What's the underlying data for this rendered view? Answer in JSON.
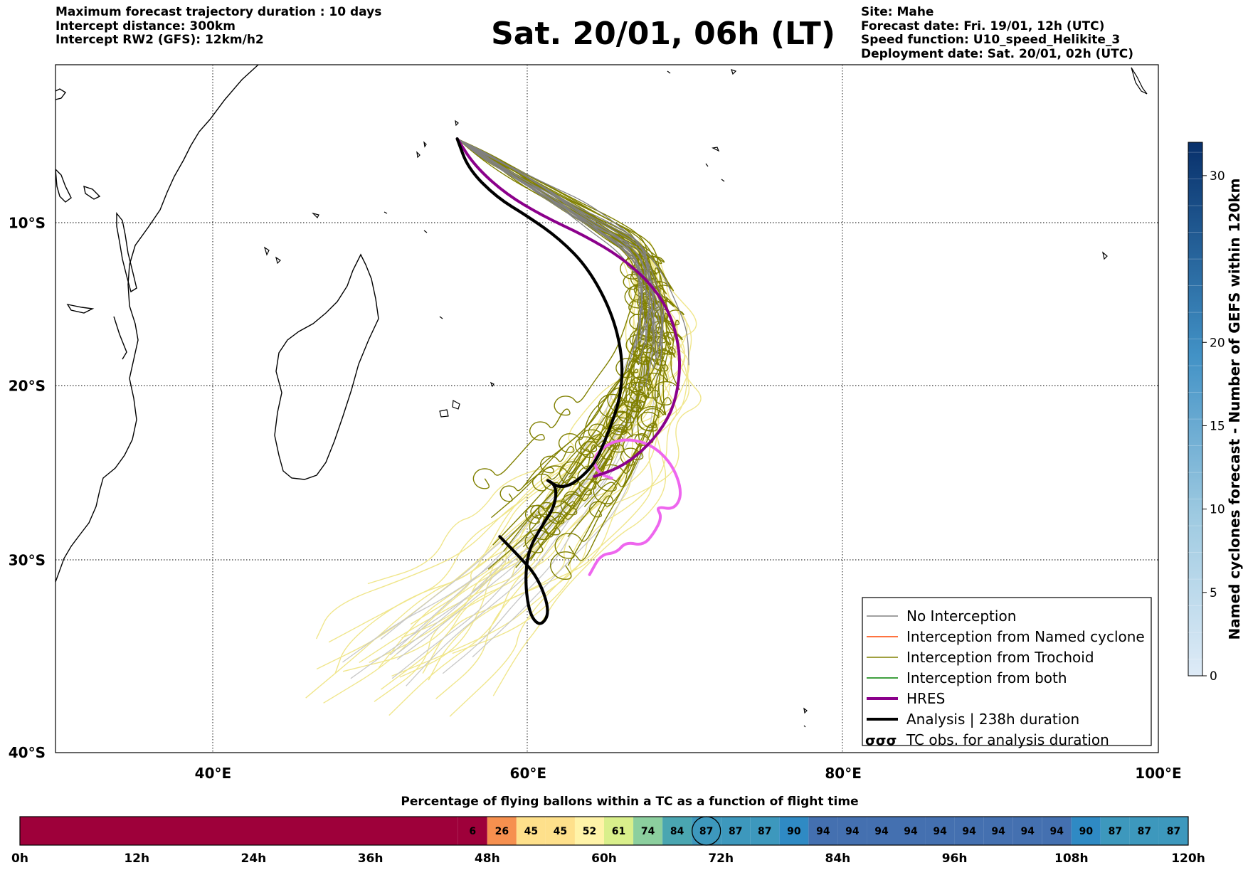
{
  "header": {
    "left": [
      "Maximum forecast trajectory duration : 10 days",
      "Intercept distance: 300km",
      "Intercept RW2 (GFS):  12km/h2"
    ],
    "title": "Sat. 20/01, 06h (LT)",
    "right": [
      "Site: Mahe",
      "Forecast date: Fri. 19/01, 12h (UTC)",
      "Speed function: U10_speed_Helikite_3",
      "Deployment date: Sat. 20/01, 02h (UTC)"
    ]
  },
  "chart_data": [
    {
      "type": "map-trajectories",
      "xlim": [
        30,
        100
      ],
      "ylim": [
        -40,
        0
      ],
      "x_ticks": [
        40,
        60,
        80,
        100
      ],
      "x_tick_labels": [
        "40°E",
        "60°E",
        "80°E",
        "100°E"
      ],
      "y_ticks": [
        -10,
        -20,
        -30,
        -40
      ],
      "y_tick_labels": [
        "10°S",
        "20°S",
        "30°S",
        "40°S"
      ],
      "grid": true,
      "legend_position": "bottom-right",
      "legend": [
        {
          "label": "No Interception",
          "color": "#808080",
          "style": "thin"
        },
        {
          "label": "Interception from Named cyclone",
          "color": "#ff4500",
          "style": "thin"
        },
        {
          "label": "Interception from Trochoid",
          "color": "#808000",
          "style": "thin"
        },
        {
          "label": "Interception from both",
          "color": "#008000",
          "style": "thin"
        },
        {
          "label": "HRES",
          "color": "#8b008b",
          "style": "thick"
        },
        {
          "label": "Analysis | 238h duration",
          "color": "#000000",
          "style": "thick"
        },
        {
          "label": "TC obs. for analysis duration",
          "color": "#000000",
          "style": "symbol",
          "symbol": "σσσ"
        }
      ],
      "launch_site": {
        "lon": 55.5,
        "lat": -4.7
      },
      "analysis_track": [
        [
          55.5,
          -4.7
        ],
        [
          56.2,
          -6.6
        ],
        [
          58.0,
          -8.4
        ],
        [
          60.0,
          -9.6
        ],
        [
          62.0,
          -11.0
        ],
        [
          63.8,
          -12.8
        ],
        [
          65.3,
          -15.5
        ],
        [
          66.0,
          -18.2
        ],
        [
          65.9,
          -20.6
        ],
        [
          65.0,
          -23.0
        ],
        [
          64.1,
          -24.8
        ],
        [
          62.3,
          -26.1
        ],
        [
          61.0,
          -25.4
        ],
        [
          61.8,
          -25.8
        ],
        [
          61.7,
          -27.0
        ],
        [
          60.8,
          -28.2
        ],
        [
          60.0,
          -29.5
        ],
        [
          59.8,
          -31.2
        ],
        [
          60.1,
          -33.0
        ],
        [
          60.8,
          -33.6
        ],
        [
          61.4,
          -32.8
        ],
        [
          60.6,
          -30.9
        ],
        [
          59.2,
          -29.6
        ],
        [
          58.2,
          -28.7
        ]
      ],
      "hres_track": [
        [
          55.5,
          -4.7
        ],
        [
          56.6,
          -6.4
        ],
        [
          58.6,
          -8.2
        ],
        [
          61.0,
          -9.6
        ],
        [
          63.6,
          -10.8
        ],
        [
          66.0,
          -12.2
        ],
        [
          68.0,
          -14.0
        ],
        [
          69.2,
          -16.0
        ],
        [
          69.7,
          -18.4
        ],
        [
          69.4,
          -20.8
        ],
        [
          68.6,
          -22.4
        ],
        [
          67.3,
          -23.8
        ],
        [
          65.8,
          -24.8
        ],
        [
          64.2,
          -25.3
        ]
      ],
      "tc_track": [
        [
          63.9,
          -30.8
        ],
        [
          64.6,
          -29.7
        ],
        [
          65.6,
          -29.6
        ],
        [
          66.2,
          -29.0
        ],
        [
          67.3,
          -29.2
        ],
        [
          68.0,
          -28.5
        ],
        [
          68.5,
          -27.6
        ],
        [
          68.1,
          -27.0
        ],
        [
          69.3,
          -27.2
        ],
        [
          69.8,
          -26.2
        ],
        [
          69.1,
          -24.5
        ],
        [
          67.6,
          -23.3
        ],
        [
          65.6,
          -23.1
        ],
        [
          64.1,
          -24.1
        ],
        [
          64.4,
          -25.1
        ],
        [
          65.3,
          -25.4
        ]
      ]
    },
    {
      "type": "heatmap",
      "title": "Percentage of flying ballons within a TC as a function of flight time",
      "x_tick_labels": [
        "0h",
        "12h",
        "24h",
        "36h",
        "48h",
        "60h",
        "72h",
        "84h",
        "96h",
        "108h",
        "120h"
      ],
      "x_range_hours": [
        0,
        120
      ],
      "first_value_hour": 45,
      "step_hours": 3,
      "values": [
        6,
        26,
        45,
        45,
        52,
        61,
        74,
        84,
        87,
        87,
        87,
        90,
        94,
        94,
        94,
        94,
        94,
        94,
        94,
        94,
        94,
        90,
        87,
        87,
        87
      ],
      "circled_hour": 69,
      "empty_color": "#9e003a"
    },
    {
      "type": "colorbar",
      "label": "Named cyclones forecast - Number of GEFS within 120km",
      "range": [
        0,
        32
      ],
      "ticks": [
        0,
        5,
        10,
        15,
        20,
        30
      ]
    }
  ]
}
